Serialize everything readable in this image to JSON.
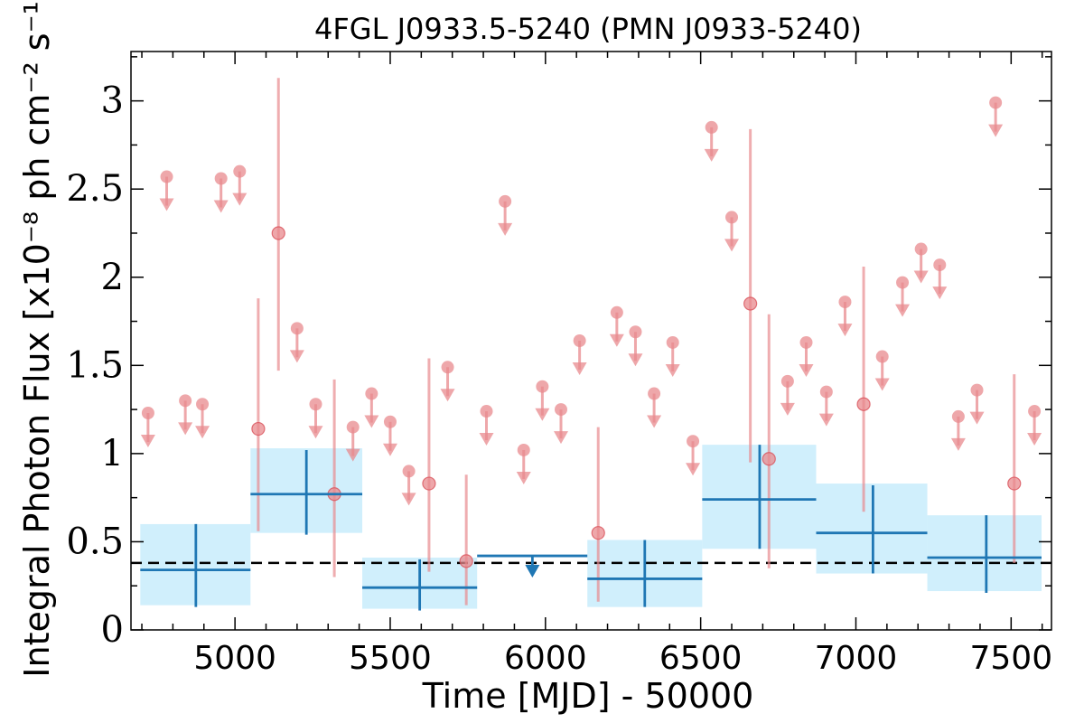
{
  "chart_data": {
    "type": "scatter",
    "title": "4FGL J0933.5-5240 (PMN J0933-5240)",
    "xlabel": "Time [MJD] - 50000",
    "ylabel": "Integral Photon Flux [x10⁻⁸ ph cm⁻² s⁻¹]",
    "xlim": [
      4665,
      7630
    ],
    "ylim": [
      0,
      3.28
    ],
    "xticks": [
      5000,
      5500,
      6000,
      6500,
      7000,
      7500
    ],
    "xtick_labels": [
      "5000",
      "5500",
      "6000",
      "6500",
      "7000",
      "7500"
    ],
    "yticks": [
      0,
      0.5,
      1,
      1.5,
      2,
      2.5,
      3
    ],
    "ytick_labels": [
      "0",
      "0.5",
      "1",
      "1.5",
      "2",
      "2.5",
      "3"
    ],
    "average_flux_line": 0.38,
    "colors": {
      "short_bin": "#e88a8e",
      "long_bin": "#1f77b4",
      "band": "#cdeefc",
      "average": "#000000"
    },
    "long_bins": [
      {
        "x": 4874,
        "x_lo": 4695,
        "x_hi": 5050,
        "y": 0.34,
        "y_lo": 0.13,
        "y_hi": 0.6,
        "band_lo": 0.14,
        "band_hi": 0.6
      },
      {
        "x": 5230,
        "x_lo": 5050,
        "x_hi": 5410,
        "y": 0.77,
        "y_lo": 0.54,
        "y_hi": 1.02,
        "band_lo": 0.55,
        "band_hi": 1.03
      },
      {
        "x": 5595,
        "x_lo": 5410,
        "x_hi": 5780,
        "y": 0.24,
        "y_lo": 0.11,
        "y_hi": 0.4,
        "band_lo": 0.12,
        "band_hi": 0.41
      },
      {
        "x": 5958,
        "x_lo": 5780,
        "x_hi": 6135,
        "y": 0.42,
        "upper_limit": true
      },
      {
        "x": 6320,
        "x_lo": 6135,
        "x_hi": 6505,
        "y": 0.29,
        "y_lo": 0.13,
        "y_hi": 0.51,
        "band_lo": 0.13,
        "band_hi": 0.51
      },
      {
        "x": 6690,
        "x_lo": 6505,
        "x_hi": 6872,
        "y": 0.74,
        "y_lo": 0.46,
        "y_hi": 1.05,
        "band_lo": 0.46,
        "band_hi": 1.05
      },
      {
        "x": 7055,
        "x_lo": 6872,
        "x_hi": 7230,
        "y": 0.55,
        "y_lo": 0.32,
        "y_hi": 0.82,
        "band_lo": 0.32,
        "band_hi": 0.83
      },
      {
        "x": 7420,
        "x_lo": 7230,
        "x_hi": 7598,
        "y": 0.41,
        "y_lo": 0.21,
        "y_hi": 0.65,
        "band_lo": 0.22,
        "band_hi": 0.65
      }
    ],
    "short_bins": [
      {
        "x": 4720,
        "y": 1.23,
        "upper_limit": true
      },
      {
        "x": 4780,
        "y": 2.57,
        "upper_limit": true
      },
      {
        "x": 4840,
        "y": 1.3,
        "upper_limit": true
      },
      {
        "x": 4895,
        "y": 1.28,
        "upper_limit": true
      },
      {
        "x": 4955,
        "y": 2.56,
        "upper_limit": true
      },
      {
        "x": 5015,
        "y": 2.6,
        "upper_limit": true
      },
      {
        "x": 5075,
        "y": 1.14,
        "y_lo": 0.56,
        "y_hi": 1.88
      },
      {
        "x": 5140,
        "y": 2.25,
        "y_lo": 1.47,
        "y_hi": 3.13
      },
      {
        "x": 5200,
        "y": 1.71,
        "upper_limit": true
      },
      {
        "x": 5260,
        "y": 1.28,
        "upper_limit": true
      },
      {
        "x": 5320,
        "y": 0.77,
        "y_lo": 0.3,
        "y_hi": 1.42
      },
      {
        "x": 5380,
        "y": 1.15,
        "upper_limit": true
      },
      {
        "x": 5440,
        "y": 1.34,
        "upper_limit": true
      },
      {
        "x": 5500,
        "y": 1.18,
        "upper_limit": true
      },
      {
        "x": 5560,
        "y": 0.9,
        "upper_limit": true
      },
      {
        "x": 5625,
        "y": 0.83,
        "y_lo": 0.33,
        "y_hi": 1.54
      },
      {
        "x": 5685,
        "y": 1.49,
        "upper_limit": true
      },
      {
        "x": 5745,
        "y": 0.39,
        "y_lo": 0.14,
        "y_hi": 0.88
      },
      {
        "x": 5810,
        "y": 1.24,
        "upper_limit": true
      },
      {
        "x": 5870,
        "y": 2.43,
        "upper_limit": true
      },
      {
        "x": 5930,
        "y": 1.02,
        "upper_limit": true
      },
      {
        "x": 5990,
        "y": 1.38,
        "upper_limit": true
      },
      {
        "x": 6050,
        "y": 1.25,
        "upper_limit": true
      },
      {
        "x": 6110,
        "y": 1.64,
        "upper_limit": true
      },
      {
        "x": 6170,
        "y": 0.55,
        "y_lo": 0.16,
        "y_hi": 1.15
      },
      {
        "x": 6230,
        "y": 1.8,
        "upper_limit": true
      },
      {
        "x": 6290,
        "y": 1.69,
        "upper_limit": true
      },
      {
        "x": 6350,
        "y": 1.34,
        "upper_limit": true
      },
      {
        "x": 6410,
        "y": 1.63,
        "upper_limit": true
      },
      {
        "x": 6475,
        "y": 1.07,
        "upper_limit": true
      },
      {
        "x": 6535,
        "y": 2.85,
        "upper_limit": true
      },
      {
        "x": 6600,
        "y": 2.34,
        "upper_limit": true
      },
      {
        "x": 6660,
        "y": 1.85,
        "y_lo": 0.95,
        "y_hi": 2.84
      },
      {
        "x": 6720,
        "y": 0.97,
        "y_lo": 0.35,
        "y_hi": 1.79
      },
      {
        "x": 6780,
        "y": 1.41,
        "upper_limit": true
      },
      {
        "x": 6840,
        "y": 1.63,
        "upper_limit": true
      },
      {
        "x": 6905,
        "y": 1.35,
        "upper_limit": true
      },
      {
        "x": 6965,
        "y": 1.86,
        "upper_limit": true
      },
      {
        "x": 7025,
        "y": 1.28,
        "y_lo": 0.67,
        "y_hi": 2.06
      },
      {
        "x": 7085,
        "y": 1.55,
        "upper_limit": true
      },
      {
        "x": 7150,
        "y": 1.97,
        "upper_limit": true
      },
      {
        "x": 7210,
        "y": 2.16,
        "upper_limit": true
      },
      {
        "x": 7270,
        "y": 2.07,
        "upper_limit": true
      },
      {
        "x": 7330,
        "y": 1.21,
        "upper_limit": true
      },
      {
        "x": 7390,
        "y": 1.36,
        "upper_limit": true
      },
      {
        "x": 7450,
        "y": 2.99,
        "upper_limit": true
      },
      {
        "x": 7510,
        "y": 0.83,
        "y_lo": 0.38,
        "y_hi": 1.45
      },
      {
        "x": 7575,
        "y": 1.24,
        "upper_limit": true
      }
    ],
    "grid": false,
    "legend": "none"
  }
}
